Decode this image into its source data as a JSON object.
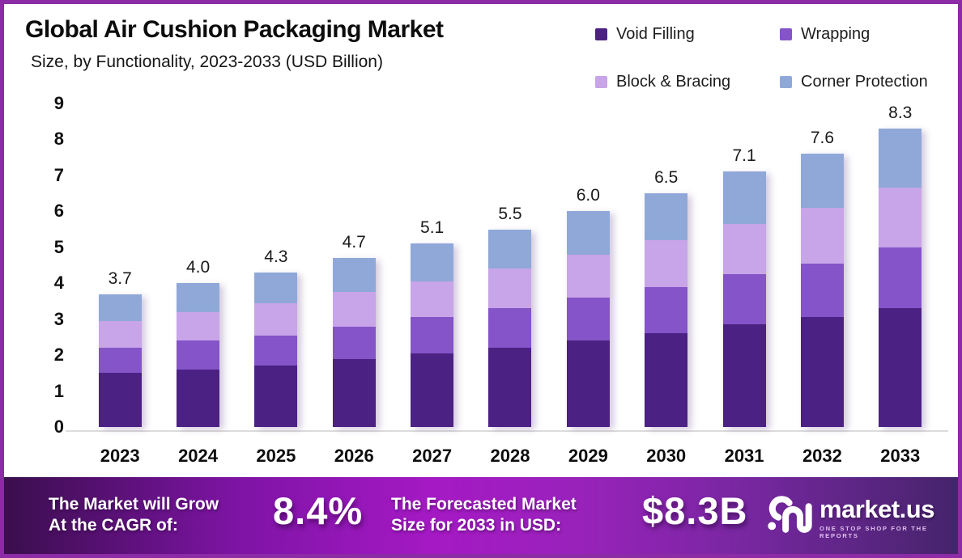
{
  "header": {
    "title": "Global Air Cushion Packaging Market",
    "subtitle": "Size, by Functionality, 2023-2033 (USD Billion)"
  },
  "chart_data": {
    "type": "bar",
    "stacked": true,
    "title": "Global Air Cushion Packaging Market Size, by Functionality, 2023-2033 (USD Billion)",
    "categories": [
      "2023",
      "2024",
      "2025",
      "2026",
      "2027",
      "2028",
      "2029",
      "2030",
      "2031",
      "2032",
      "2033"
    ],
    "series": [
      {
        "name": "Void Filling",
        "color": "#4B2183",
        "values": [
          1.5,
          1.6,
          1.7,
          1.9,
          2.05,
          2.2,
          2.4,
          2.6,
          2.85,
          3.05,
          3.3
        ]
      },
      {
        "name": "Wrapping",
        "color": "#8454C8",
        "values": [
          0.7,
          0.8,
          0.85,
          0.9,
          1.0,
          1.1,
          1.2,
          1.3,
          1.4,
          1.5,
          1.7
        ]
      },
      {
        "name": "Block & Bracing",
        "color": "#C8A4E8",
        "values": [
          0.75,
          0.8,
          0.9,
          0.95,
          1.0,
          1.1,
          1.2,
          1.3,
          1.4,
          1.55,
          1.65
        ]
      },
      {
        "name": "Corner Protection",
        "color": "#8FA8D8",
        "values": [
          0.75,
          0.8,
          0.85,
          0.95,
          1.05,
          1.1,
          1.2,
          1.3,
          1.45,
          1.5,
          1.65
        ]
      }
    ],
    "total_labels": [
      "3.7",
      "4.0",
      "4.3",
      "4.7",
      "5.1",
      "5.5",
      "6.0",
      "6.5",
      "7.1",
      "7.6",
      "8.3"
    ],
    "xlabel": "",
    "ylabel": "",
    "ylim": [
      0,
      9
    ],
    "yticks": [
      0,
      1,
      2,
      3,
      4,
      5,
      6,
      7,
      8,
      9
    ],
    "grid": false,
    "legend_position": "top-right"
  },
  "banner": {
    "cagr_label_line1": "The Market will Grow",
    "cagr_label_line2": "At the CAGR of:",
    "cagr_value": "8.4%",
    "forecast_label_line1": "The Forecasted Market",
    "forecast_label_line2": "Size for 2033 in USD:",
    "forecast_value": "$8.3B",
    "logo": {
      "text": "market.us",
      "tagline": "ONE STOP SHOP FOR THE REPORTS"
    }
  },
  "colors": {
    "frame_border": "#8C2BA6",
    "axis_line": "#dcdcdc",
    "banner_gradient": [
      "#3A0E4D",
      "#A519C4",
      "#45246B"
    ]
  }
}
